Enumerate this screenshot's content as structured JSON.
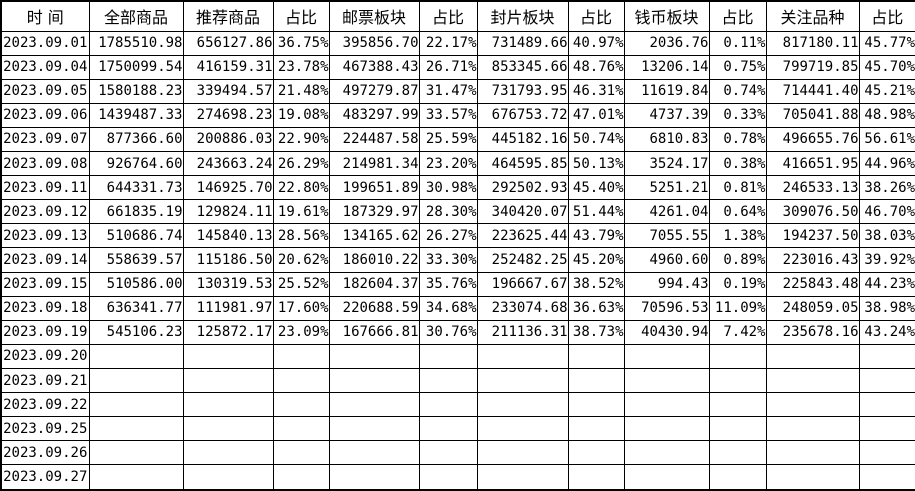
{
  "colors": {
    "grid_line": "#000000",
    "text": "#000000",
    "background": "#ffffff"
  },
  "chart_data": {
    "type": "table",
    "title": "",
    "headers": [
      "时  间",
      "全部商品",
      "推荐商品",
      "占比",
      "邮票板块",
      "占比",
      "封片板块",
      "占比",
      "钱币板块",
      "占比",
      "关注品种",
      "占比"
    ],
    "rows": [
      [
        "2023.09.01",
        "1785510.98",
        "656127.86",
        "36.75%",
        "395856.70",
        "22.17%",
        "731489.66",
        "40.97%",
        "2036.76",
        "0.11%",
        "817180.11",
        "45.77%"
      ],
      [
        "2023.09.04",
        "1750099.54",
        "416159.31",
        "23.78%",
        "467388.43",
        "26.71%",
        "853345.66",
        "48.76%",
        "13206.14",
        "0.75%",
        "799719.85",
        "45.70%"
      ],
      [
        "2023.09.05",
        "1580188.23",
        "339494.57",
        "21.48%",
        "497279.87",
        "31.47%",
        "731793.95",
        "46.31%",
        "11619.84",
        "0.74%",
        "714441.40",
        "45.21%"
      ],
      [
        "2023.09.06",
        "1439487.33",
        "274698.23",
        "19.08%",
        "483297.99",
        "33.57%",
        "676753.72",
        "47.01%",
        "4737.39",
        "0.33%",
        "705041.88",
        "48.98%"
      ],
      [
        "2023.09.07",
        "877366.60",
        "200886.03",
        "22.90%",
        "224487.58",
        "25.59%",
        "445182.16",
        "50.74%",
        "6810.83",
        "0.78%",
        "496655.76",
        "56.61%"
      ],
      [
        "2023.09.08",
        "926764.60",
        "243663.24",
        "26.29%",
        "214981.34",
        "23.20%",
        "464595.85",
        "50.13%",
        "3524.17",
        "0.38%",
        "416651.95",
        "44.96%"
      ],
      [
        "2023.09.11",
        "644331.73",
        "146925.70",
        "22.80%",
        "199651.89",
        "30.98%",
        "292502.93",
        "45.40%",
        "5251.21",
        "0.81%",
        "246533.13",
        "38.26%"
      ],
      [
        "2023.09.12",
        "661835.19",
        "129824.11",
        "19.61%",
        "187329.97",
        "28.30%",
        "340420.07",
        "51.44%",
        "4261.04",
        "0.64%",
        "309076.50",
        "46.70%"
      ],
      [
        "2023.09.13",
        "510686.74",
        "145840.13",
        "28.56%",
        "134165.62",
        "26.27%",
        "223625.44",
        "43.79%",
        "7055.55",
        "1.38%",
        "194237.50",
        "38.03%"
      ],
      [
        "2023.09.14",
        "558639.57",
        "115186.50",
        "20.62%",
        "186010.22",
        "33.30%",
        "252482.25",
        "45.20%",
        "4960.60",
        "0.89%",
        "223016.43",
        "39.92%"
      ],
      [
        "2023.09.15",
        "510586.00",
        "130319.53",
        "25.52%",
        "182604.37",
        "35.76%",
        "196667.67",
        "38.52%",
        "994.43",
        "0.19%",
        "225843.48",
        "44.23%"
      ],
      [
        "2023.09.18",
        "636341.77",
        "111981.97",
        "17.60%",
        "220688.59",
        "34.68%",
        "233074.68",
        "36.63%",
        "70596.53",
        "11.09%",
        "248059.05",
        "38.98%"
      ],
      [
        "2023.09.19",
        "545106.23",
        "125872.17",
        "23.09%",
        "167666.81",
        "30.76%",
        "211136.31",
        "38.73%",
        "40430.94",
        "7.42%",
        "235678.16",
        "43.24%"
      ],
      [
        "2023.09.20",
        "",
        "",
        "",
        "",
        "",
        "",
        "",
        "",
        "",
        "",
        ""
      ],
      [
        "2023.09.21",
        "",
        "",
        "",
        "",
        "",
        "",
        "",
        "",
        "",
        "",
        ""
      ],
      [
        "2023.09.22",
        "",
        "",
        "",
        "",
        "",
        "",
        "",
        "",
        "",
        "",
        ""
      ],
      [
        "2023.09.25",
        "",
        "",
        "",
        "",
        "",
        "",
        "",
        "",
        "",
        "",
        ""
      ],
      [
        "2023.09.26",
        "",
        "",
        "",
        "",
        "",
        "",
        "",
        "",
        "",
        "",
        ""
      ],
      [
        "2023.09.27",
        "",
        "",
        "",
        "",
        "",
        "",
        "",
        "",
        "",
        "",
        ""
      ]
    ]
  }
}
